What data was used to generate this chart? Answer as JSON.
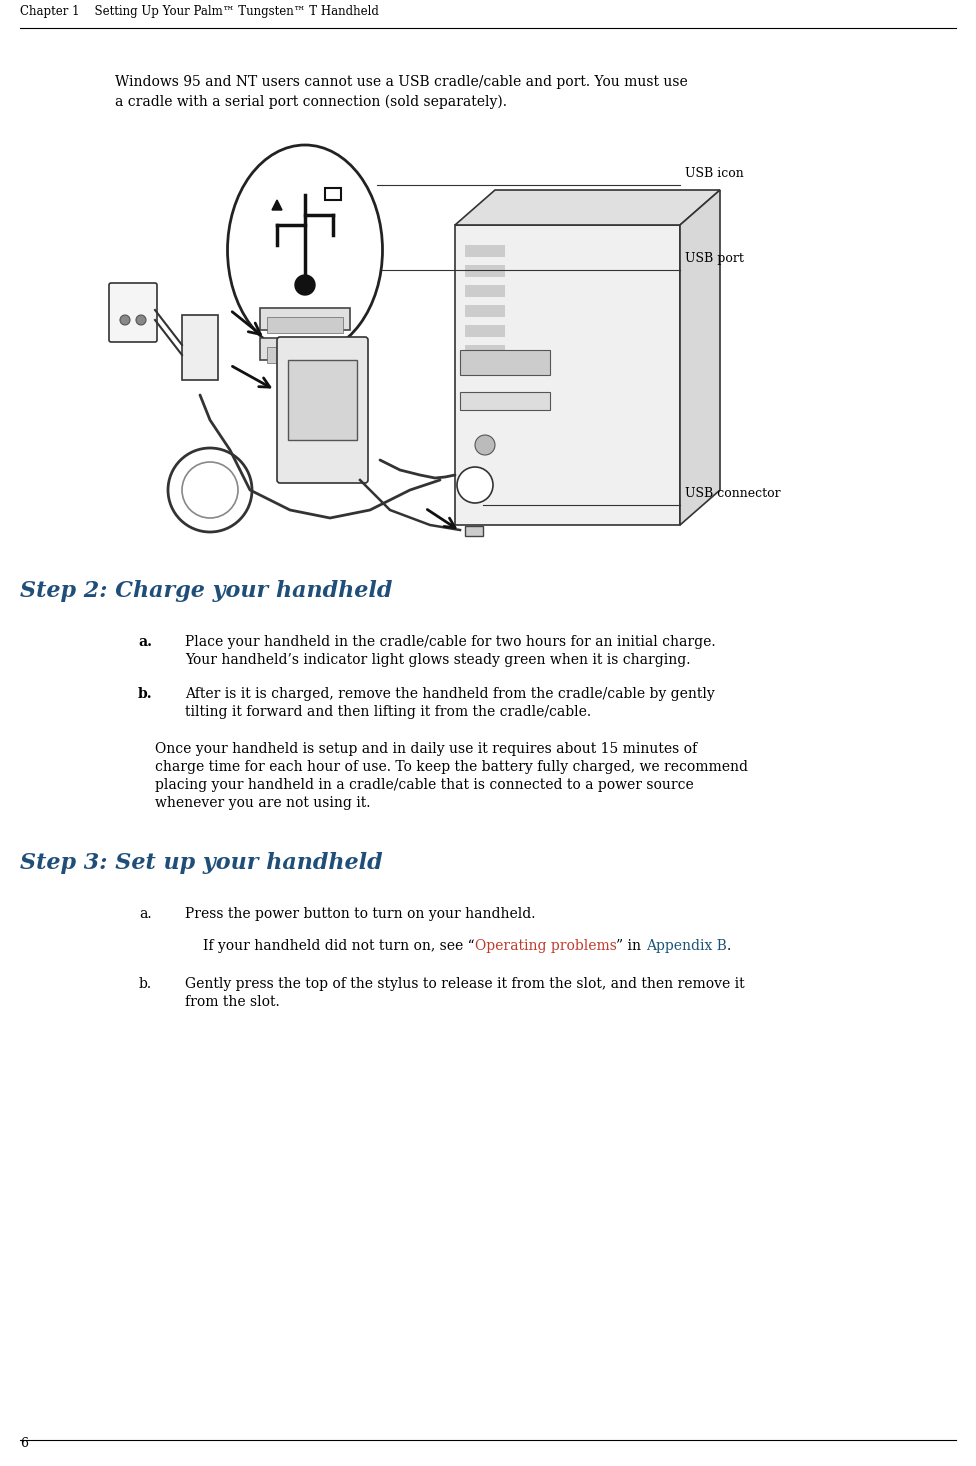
{
  "header_chapter": "Chapter 1",
  "header_title": "Setting Up Your Palm™ Tungsten™ T Handheld",
  "page_number": "6",
  "bg_color": "#ffffff",
  "header_line_color": "#000000",
  "body_font_size": 10.0,
  "heading_color": "#1f4e79",
  "heading_font_size": 16,
  "link_color": "#c0392b",
  "applink_color": "#1a5276",
  "intro_text_line1": "Windows 95 and NT users cannot use a USB cradle/cable and port. You must use",
  "intro_text_line2": "a cradle with a serial port connection (sold separately).",
  "step2_heading": "Step 2: Charge your handheld",
  "step2a_label": "a.",
  "step2a_line1": "Place your handheld in the cradle/cable for two hours for an initial charge.",
  "step2a_line2": "Your handheld’s indicator light glows steady green when it is charging.",
  "step2b_label": "b.",
  "step2b_line1": "After is it is charged, remove the handheld from the cradle/cable by gently",
  "step2b_line2": "tilting it forward and then lifting it from the cradle/cable.",
  "step2_para_line1": "Once your handheld is setup and in daily use it requires about 15 minutes of",
  "step2_para_line2": "charge time for each hour of use. To keep the battery fully charged, we recommend",
  "step2_para_line3": "placing your handheld in a cradle/cable that is connected to a power source",
  "step2_para_line4": "whenever you are not using it.",
  "step3_heading": "Step 3: Set up your handheld",
  "step3a_label": "a.",
  "step3a_text": "Press the power button to turn on your handheld.",
  "step3a_note_pre": "If your handheld did not turn on, see “",
  "step3a_note_link": "Operating problems",
  "step3a_note_mid": "” in ",
  "step3a_note_app": "Appendix B",
  "step3a_note_post": ".",
  "step3b_label": "b.",
  "step3b_line1": "Gently press the top of the stylus to release it from the slot, and then remove it",
  "step3b_line2": "from the slot.",
  "usb_icon_label": "USB icon",
  "usb_port_label": "USB port",
  "usb_connector_label": "USB connector"
}
